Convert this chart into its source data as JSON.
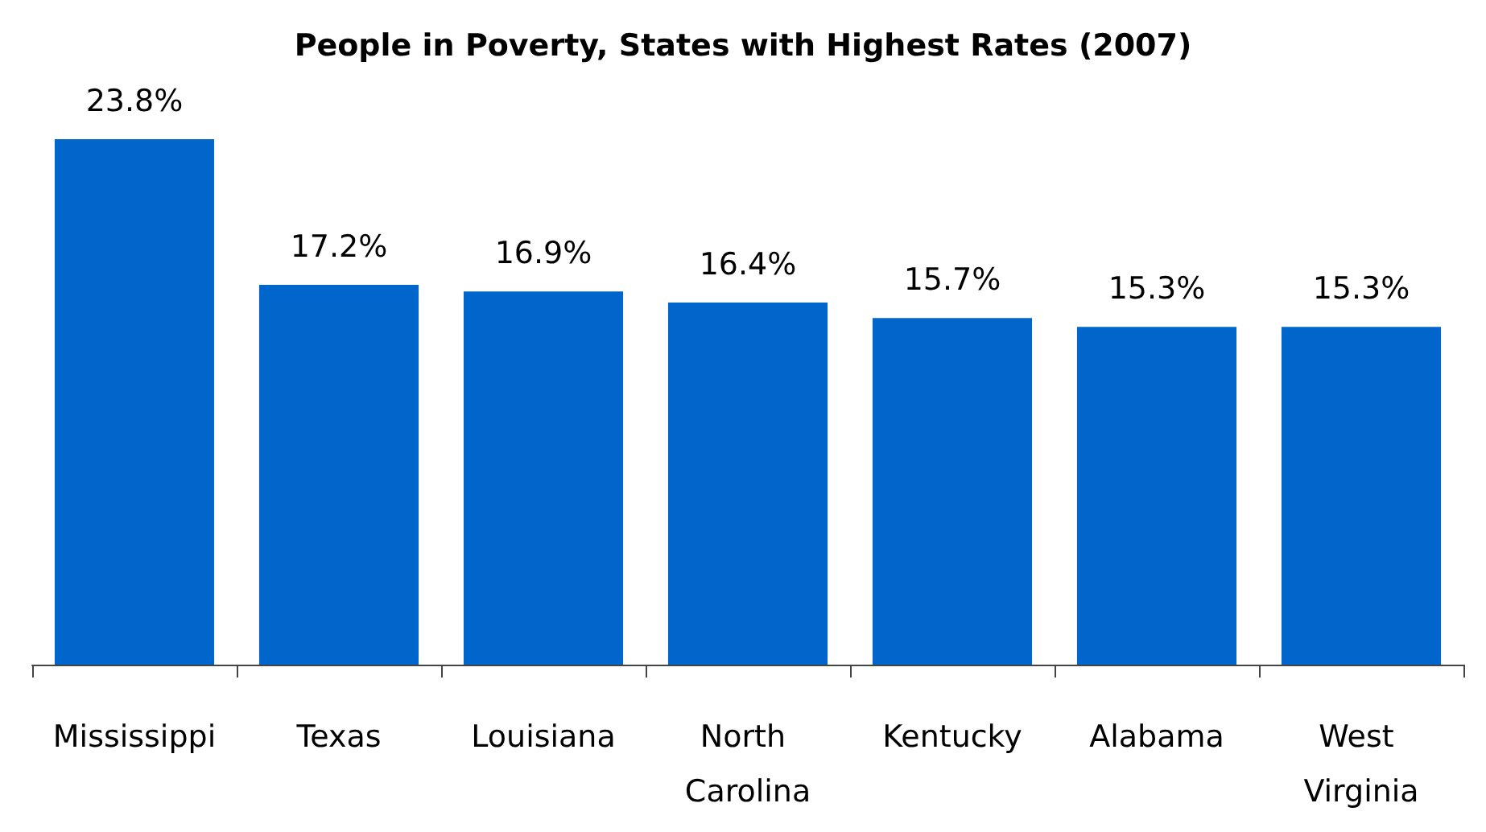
{
  "chart_data": {
    "type": "bar",
    "title": "People in Poverty, States with Highest Rates (2007)",
    "categories": [
      "Mississippi",
      "Texas",
      "Louisiana",
      "North Carolina",
      "Kentucky",
      "Alabama",
      "West Virginia"
    ],
    "values": [
      23.8,
      17.2,
      16.9,
      16.4,
      15.7,
      15.3,
      15.3
    ],
    "value_labels": [
      "23.8%",
      "17.2%",
      "16.9%",
      "16.4%",
      "15.7%",
      "15.3%",
      "15.3%"
    ],
    "color": "#0066cc"
  }
}
